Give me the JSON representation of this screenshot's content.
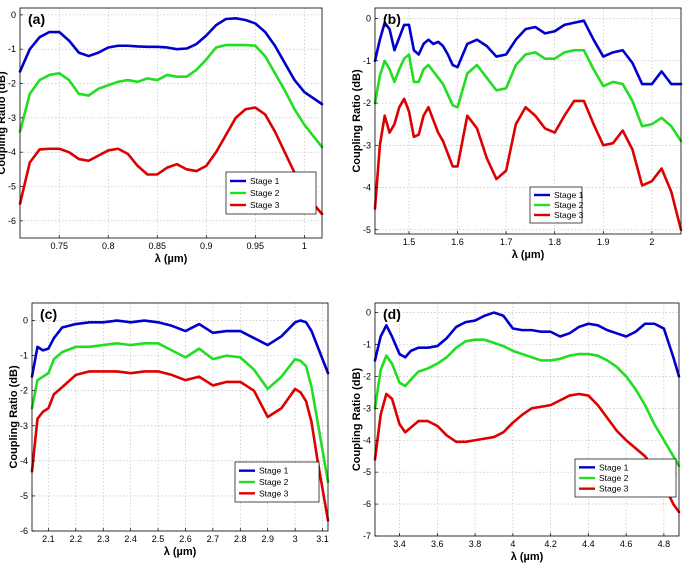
{
  "chart_data": [
    {
      "type": "line",
      "panel": "(a)",
      "title": "",
      "xlabel": "λ (µm)",
      "ylabel": "Coupling Ratio (dB)",
      "xlim": [
        0.71,
        1.018
      ],
      "ylim": [
        -6.5,
        0.2
      ],
      "xticks": [
        0.75,
        0.8,
        0.85,
        0.9,
        0.95,
        1
      ],
      "xtick_labels": [
        "0.75",
        "0.8",
        "0.85",
        "0.9",
        "0.95",
        "1"
      ],
      "yticks": [
        0,
        -1,
        -2,
        -3,
        -4,
        -5,
        -6
      ],
      "ytick_labels": [
        "0",
        "-1",
        "-2",
        "-3",
        "-4",
        "-5",
        "-6"
      ],
      "legend": "lower-right",
      "grid": true,
      "series": [
        {
          "name": "Stage 1",
          "color": "#0000cc",
          "x": [
            0.71,
            0.72,
            0.73,
            0.74,
            0.75,
            0.76,
            0.77,
            0.78,
            0.79,
            0.8,
            0.81,
            0.82,
            0.83,
            0.84,
            0.85,
            0.86,
            0.87,
            0.88,
            0.89,
            0.9,
            0.91,
            0.92,
            0.93,
            0.94,
            0.95,
            0.96,
            0.97,
            0.98,
            0.99,
            1.0,
            1.018
          ],
          "y": [
            -1.65,
            -1.0,
            -0.65,
            -0.5,
            -0.5,
            -0.75,
            -1.1,
            -1.2,
            -1.1,
            -0.95,
            -0.9,
            -0.9,
            -0.92,
            -0.93,
            -0.93,
            -0.95,
            -1.0,
            -0.98,
            -0.85,
            -0.6,
            -0.3,
            -0.12,
            -0.1,
            -0.15,
            -0.25,
            -0.5,
            -0.9,
            -1.4,
            -1.9,
            -2.25,
            -2.6
          ]
        },
        {
          "name": "Stage 2",
          "color": "#22dd22",
          "x": [
            0.71,
            0.72,
            0.73,
            0.74,
            0.75,
            0.76,
            0.77,
            0.78,
            0.79,
            0.8,
            0.81,
            0.82,
            0.83,
            0.84,
            0.85,
            0.86,
            0.87,
            0.88,
            0.89,
            0.9,
            0.91,
            0.92,
            0.93,
            0.94,
            0.95,
            0.96,
            0.97,
            0.98,
            0.99,
            1.0,
            1.018
          ],
          "y": [
            -3.4,
            -2.3,
            -1.9,
            -1.75,
            -1.7,
            -1.9,
            -2.3,
            -2.35,
            -2.15,
            -2.05,
            -1.95,
            -1.9,
            -1.95,
            -1.85,
            -1.9,
            -1.75,
            -1.8,
            -1.8,
            -1.6,
            -1.3,
            -0.95,
            -0.88,
            -0.88,
            -0.88,
            -0.9,
            -1.2,
            -1.7,
            -2.2,
            -2.75,
            -3.2,
            -3.85
          ]
        },
        {
          "name": "Stage 3",
          "color": "#dd0000",
          "x": [
            0.71,
            0.72,
            0.73,
            0.74,
            0.75,
            0.76,
            0.77,
            0.78,
            0.79,
            0.8,
            0.81,
            0.82,
            0.83,
            0.84,
            0.85,
            0.86,
            0.87,
            0.88,
            0.89,
            0.9,
            0.91,
            0.92,
            0.93,
            0.94,
            0.95,
            0.96,
            0.97,
            0.98,
            0.99,
            1.0,
            1.018
          ],
          "y": [
            -5.5,
            -4.3,
            -3.92,
            -3.9,
            -3.9,
            -4.0,
            -4.2,
            -4.25,
            -4.1,
            -3.95,
            -3.9,
            -4.05,
            -4.4,
            -4.65,
            -4.65,
            -4.45,
            -4.35,
            -4.5,
            -4.55,
            -4.4,
            -4.0,
            -3.5,
            -3.0,
            -2.75,
            -2.7,
            -2.9,
            -3.4,
            -4.0,
            -4.6,
            -5.2,
            -5.8
          ]
        }
      ]
    },
    {
      "type": "line",
      "panel": "(b)",
      "title": "",
      "xlabel": "λ (µm)",
      "ylabel": "Coupling Ratio (dB)",
      "xlim": [
        1.43,
        2.06
      ],
      "ylim": [
        -5.1,
        0.25
      ],
      "xticks": [
        1.5,
        1.6,
        1.7,
        1.8,
        1.9,
        2
      ],
      "xtick_labels": [
        "1.5",
        "1.6",
        "1.7",
        "1.8",
        "1.9",
        "2"
      ],
      "yticks": [
        0,
        -1,
        -2,
        -3,
        -4,
        -5
      ],
      "ytick_labels": [
        "0",
        "-1",
        "-2",
        "-3",
        "-4",
        "-5"
      ],
      "legend": "lower-left",
      "grid": true,
      "series": [
        {
          "name": "Stage 1",
          "color": "#0000cc",
          "x": [
            1.43,
            1.44,
            1.45,
            1.46,
            1.47,
            1.48,
            1.49,
            1.5,
            1.51,
            1.52,
            1.53,
            1.54,
            1.55,
            1.56,
            1.57,
            1.58,
            1.59,
            1.6,
            1.62,
            1.64,
            1.66,
            1.68,
            1.7,
            1.72,
            1.74,
            1.76,
            1.78,
            1.8,
            1.82,
            1.84,
            1.86,
            1.88,
            1.9,
            1.92,
            1.94,
            1.96,
            1.98,
            2.0,
            2.02,
            2.04,
            2.06
          ],
          "y": [
            -1.0,
            -0.5,
            -0.1,
            -0.25,
            -0.75,
            -0.45,
            -0.15,
            -0.15,
            -0.75,
            -0.85,
            -0.6,
            -0.5,
            -0.6,
            -0.55,
            -0.65,
            -0.85,
            -1.1,
            -1.15,
            -0.6,
            -0.5,
            -0.65,
            -0.9,
            -0.85,
            -0.5,
            -0.25,
            -0.2,
            -0.35,
            -0.3,
            -0.15,
            -0.1,
            -0.05,
            -0.5,
            -0.9,
            -0.8,
            -0.75,
            -1.05,
            -1.55,
            -1.55,
            -1.25,
            -1.55,
            -1.55
          ]
        },
        {
          "name": "Stage 2",
          "color": "#22dd22",
          "x": [
            1.43,
            1.44,
            1.45,
            1.46,
            1.47,
            1.48,
            1.49,
            1.5,
            1.51,
            1.52,
            1.53,
            1.54,
            1.55,
            1.56,
            1.57,
            1.58,
            1.59,
            1.6,
            1.62,
            1.64,
            1.66,
            1.68,
            1.7,
            1.72,
            1.74,
            1.76,
            1.78,
            1.8,
            1.82,
            1.84,
            1.86,
            1.88,
            1.9,
            1.92,
            1.94,
            1.96,
            1.98,
            2.0,
            2.02,
            2.04,
            2.06
          ],
          "y": [
            -2.0,
            -1.35,
            -1.0,
            -1.2,
            -1.5,
            -1.2,
            -0.95,
            -0.85,
            -1.5,
            -1.5,
            -1.2,
            -1.1,
            -1.25,
            -1.4,
            -1.55,
            -1.8,
            -2.05,
            -2.1,
            -1.3,
            -1.1,
            -1.4,
            -1.7,
            -1.65,
            -1.1,
            -0.85,
            -0.8,
            -0.95,
            -0.95,
            -0.8,
            -0.75,
            -0.75,
            -1.2,
            -1.6,
            -1.5,
            -1.55,
            -1.95,
            -2.55,
            -2.5,
            -2.35,
            -2.55,
            -2.9
          ]
        },
        {
          "name": "Stage 3",
          "color": "#dd0000",
          "x": [
            1.43,
            1.44,
            1.45,
            1.46,
            1.47,
            1.48,
            1.49,
            1.5,
            1.51,
            1.52,
            1.53,
            1.54,
            1.55,
            1.56,
            1.57,
            1.58,
            1.59,
            1.6,
            1.62,
            1.64,
            1.66,
            1.68,
            1.7,
            1.72,
            1.74,
            1.76,
            1.78,
            1.8,
            1.82,
            1.84,
            1.86,
            1.88,
            1.9,
            1.92,
            1.94,
            1.96,
            1.98,
            2.0,
            2.02,
            2.04,
            2.06
          ],
          "y": [
            -4.5,
            -3.0,
            -2.3,
            -2.7,
            -2.5,
            -2.1,
            -1.9,
            -2.2,
            -2.8,
            -2.75,
            -2.3,
            -2.1,
            -2.4,
            -2.7,
            -2.9,
            -3.2,
            -3.5,
            -3.5,
            -2.3,
            -2.6,
            -3.3,
            -3.8,
            -3.6,
            -2.5,
            -2.1,
            -2.3,
            -2.6,
            -2.7,
            -2.3,
            -1.95,
            -1.95,
            -2.5,
            -3.0,
            -2.95,
            -2.65,
            -3.1,
            -3.95,
            -3.85,
            -3.55,
            -4.1,
            -5.0
          ]
        }
      ]
    },
    {
      "type": "line",
      "panel": "(c)",
      "title": "",
      "xlabel": "λ (µm)",
      "ylabel": "Coupling Ratio (dB)",
      "xlim": [
        2.04,
        3.12
      ],
      "ylim": [
        -6.0,
        0.5
      ],
      "xticks": [
        2.1,
        2.2,
        2.3,
        2.4,
        2.5,
        2.6,
        2.7,
        2.8,
        2.9,
        3,
        3.1
      ],
      "xtick_labels": [
        "2.1",
        "2.2",
        "2.3",
        "2.4",
        "2.5",
        "2.6",
        "2.7",
        "2.8",
        "2.9",
        "3",
        "3.1"
      ],
      "yticks": [
        0,
        -1,
        -2,
        -3,
        -4,
        -5,
        -6
      ],
      "ytick_labels": [
        "0",
        "-1",
        "-2",
        "-3",
        "-4",
        "-5",
        "-6"
      ],
      "legend": "lower-right",
      "grid": true,
      "series": [
        {
          "name": "Stage 1",
          "color": "#0000cc",
          "x": [
            2.04,
            2.06,
            2.08,
            2.1,
            2.12,
            2.15,
            2.2,
            2.25,
            2.3,
            2.35,
            2.4,
            2.45,
            2.5,
            2.55,
            2.6,
            2.65,
            2.7,
            2.75,
            2.8,
            2.85,
            2.9,
            2.95,
            3.0,
            3.02,
            3.04,
            3.06,
            3.08,
            3.1,
            3.12
          ],
          "y": [
            -1.6,
            -0.75,
            -0.85,
            -0.8,
            -0.5,
            -0.2,
            -0.1,
            -0.05,
            -0.05,
            0.0,
            -0.05,
            0.0,
            -0.05,
            -0.15,
            -0.3,
            -0.1,
            -0.35,
            -0.3,
            -0.3,
            -0.5,
            -0.7,
            -0.45,
            -0.05,
            0.0,
            -0.05,
            -0.3,
            -0.7,
            -1.1,
            -1.5
          ]
        },
        {
          "name": "Stage 2",
          "color": "#22dd22",
          "x": [
            2.04,
            2.06,
            2.08,
            2.1,
            2.12,
            2.15,
            2.2,
            2.25,
            2.3,
            2.35,
            2.4,
            2.45,
            2.5,
            2.55,
            2.6,
            2.65,
            2.7,
            2.75,
            2.8,
            2.85,
            2.9,
            2.95,
            3.0,
            3.02,
            3.04,
            3.06,
            3.08,
            3.1,
            3.12
          ],
          "y": [
            -2.5,
            -1.7,
            -1.6,
            -1.5,
            -1.1,
            -0.9,
            -0.75,
            -0.75,
            -0.7,
            -0.65,
            -0.7,
            -0.65,
            -0.65,
            -0.85,
            -1.05,
            -0.8,
            -1.1,
            -1.0,
            -1.05,
            -1.4,
            -1.95,
            -1.6,
            -1.1,
            -1.15,
            -1.3,
            -1.9,
            -2.8,
            -3.7,
            -4.6
          ]
        },
        {
          "name": "Stage 3",
          "color": "#dd0000",
          "x": [
            2.04,
            2.06,
            2.08,
            2.1,
            2.12,
            2.15,
            2.2,
            2.25,
            2.3,
            2.35,
            2.4,
            2.45,
            2.5,
            2.55,
            2.6,
            2.65,
            2.7,
            2.75,
            2.8,
            2.85,
            2.9,
            2.95,
            3.0,
            3.02,
            3.04,
            3.06,
            3.08,
            3.1,
            3.12
          ],
          "y": [
            -4.3,
            -2.8,
            -2.6,
            -2.5,
            -2.1,
            -1.9,
            -1.55,
            -1.45,
            -1.45,
            -1.45,
            -1.5,
            -1.45,
            -1.45,
            -1.55,
            -1.7,
            -1.6,
            -1.85,
            -1.75,
            -1.75,
            -2.0,
            -2.75,
            -2.5,
            -1.95,
            -2.05,
            -2.3,
            -2.9,
            -3.9,
            -4.8,
            -5.7
          ]
        }
      ]
    },
    {
      "type": "line",
      "panel": "(d)",
      "title": "",
      "xlabel": "λ (µm)",
      "ylabel": "Coupling Ratio (dB)",
      "xlim": [
        3.27,
        4.88
      ],
      "ylim": [
        -7.0,
        0.3
      ],
      "xticks": [
        3.4,
        3.6,
        3.8,
        4,
        4.2,
        4.4,
        4.6,
        4.8
      ],
      "xtick_labels": [
        "3.4",
        "3.6",
        "3.8",
        "4",
        "4.2",
        "4.4",
        "4.6",
        "4.8"
      ],
      "yticks": [
        0,
        -1,
        -2,
        -3,
        -4,
        -5,
        -6,
        -7
      ],
      "ytick_labels": [
        "0",
        "-1",
        "-2",
        "-3",
        "-4",
        "-5",
        "-6",
        "-7"
      ],
      "legend": "lower-right",
      "grid": true,
      "series": [
        {
          "name": "Stage 1",
          "color": "#0000cc",
          "x": [
            3.27,
            3.3,
            3.33,
            3.36,
            3.4,
            3.43,
            3.46,
            3.5,
            3.55,
            3.6,
            3.65,
            3.7,
            3.75,
            3.8,
            3.85,
            3.9,
            3.95,
            4.0,
            4.05,
            4.1,
            4.15,
            4.2,
            4.25,
            4.3,
            4.35,
            4.4,
            4.45,
            4.5,
            4.55,
            4.6,
            4.65,
            4.7,
            4.75,
            4.8,
            4.85,
            4.88
          ],
          "y": [
            -1.5,
            -0.75,
            -0.4,
            -0.75,
            -1.3,
            -1.4,
            -1.2,
            -1.1,
            -1.1,
            -1.05,
            -0.8,
            -0.45,
            -0.3,
            -0.25,
            -0.1,
            0.0,
            -0.1,
            -0.5,
            -0.55,
            -0.55,
            -0.6,
            -0.6,
            -0.75,
            -0.65,
            -0.45,
            -0.35,
            -0.4,
            -0.55,
            -0.65,
            -0.75,
            -0.6,
            -0.35,
            -0.35,
            -0.5,
            -1.4,
            -2.0
          ]
        },
        {
          "name": "Stage 2",
          "color": "#22dd22",
          "x": [
            3.27,
            3.3,
            3.33,
            3.36,
            3.4,
            3.43,
            3.46,
            3.5,
            3.55,
            3.6,
            3.65,
            3.7,
            3.75,
            3.8,
            3.85,
            3.9,
            3.95,
            4.0,
            4.05,
            4.1,
            4.15,
            4.2,
            4.25,
            4.3,
            4.35,
            4.4,
            4.45,
            4.5,
            4.55,
            4.6,
            4.65,
            4.7,
            4.75,
            4.8,
            4.85,
            4.88
          ],
          "y": [
            -3.0,
            -1.8,
            -1.35,
            -1.6,
            -2.2,
            -2.3,
            -2.1,
            -1.85,
            -1.75,
            -1.6,
            -1.4,
            -1.1,
            -0.9,
            -0.85,
            -0.85,
            -0.95,
            -1.05,
            -1.2,
            -1.3,
            -1.4,
            -1.5,
            -1.5,
            -1.45,
            -1.35,
            -1.3,
            -1.3,
            -1.35,
            -1.5,
            -1.7,
            -2.0,
            -2.4,
            -2.9,
            -3.5,
            -4.0,
            -4.5,
            -4.8
          ]
        },
        {
          "name": "Stage 3",
          "color": "#dd0000",
          "x": [
            3.27,
            3.3,
            3.33,
            3.36,
            3.4,
            3.43,
            3.46,
            3.5,
            3.55,
            3.6,
            3.65,
            3.7,
            3.75,
            3.8,
            3.85,
            3.9,
            3.95,
            4.0,
            4.05,
            4.1,
            4.15,
            4.2,
            4.25,
            4.3,
            4.35,
            4.4,
            4.45,
            4.5,
            4.55,
            4.6,
            4.65,
            4.7,
            4.75,
            4.8,
            4.85,
            4.88
          ],
          "y": [
            -4.6,
            -3.2,
            -2.55,
            -2.7,
            -3.5,
            -3.75,
            -3.6,
            -3.4,
            -3.4,
            -3.55,
            -3.85,
            -4.05,
            -4.05,
            -4.0,
            -3.95,
            -3.9,
            -3.75,
            -3.45,
            -3.2,
            -3.0,
            -2.95,
            -2.9,
            -2.75,
            -2.6,
            -2.55,
            -2.6,
            -2.9,
            -3.3,
            -3.7,
            -4.0,
            -4.25,
            -4.5,
            -4.9,
            -5.4,
            -6.0,
            -6.25
          ]
        }
      ]
    }
  ]
}
